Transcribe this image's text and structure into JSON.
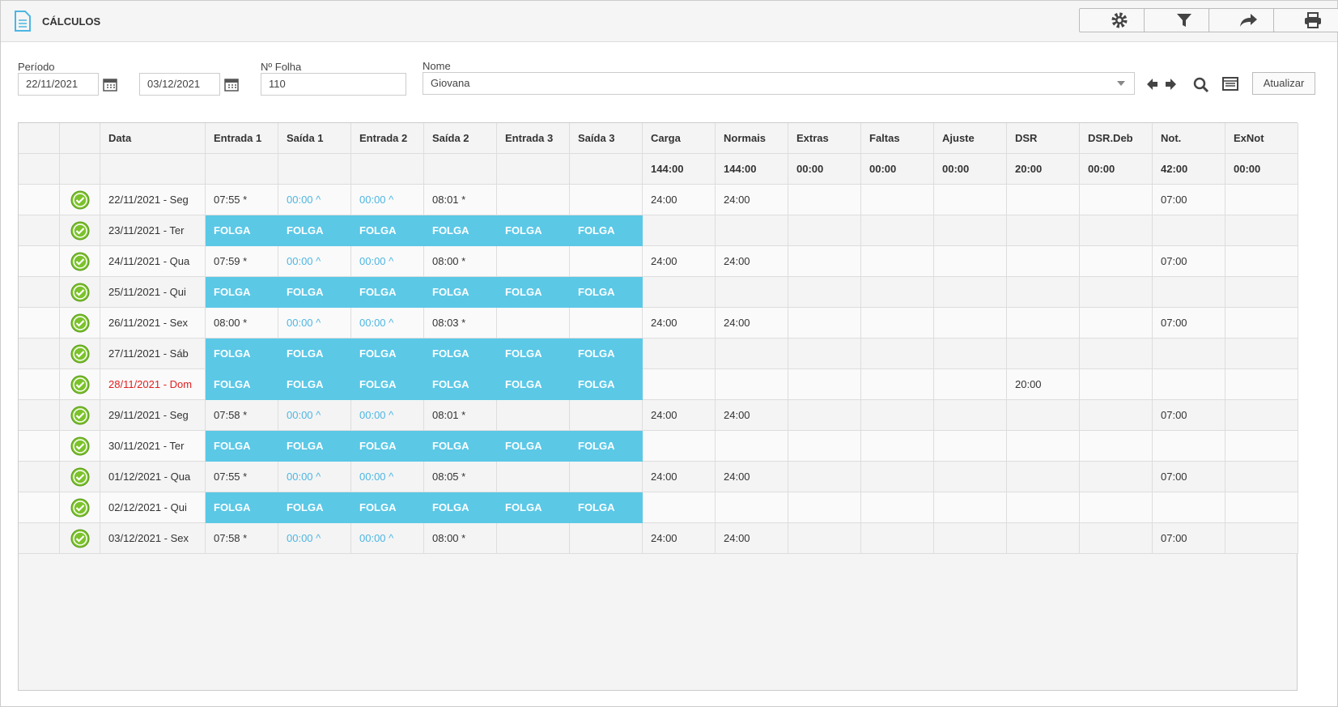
{
  "header": {
    "title": "CÁLCULOS"
  },
  "filters": {
    "periodo_label": "Período",
    "start": "22/11/2021",
    "end": "03/12/2021",
    "folha_label": "Nº Folha",
    "folha": "110",
    "nome_label": "Nome",
    "nome": "Giovana",
    "button": "Atualizar"
  },
  "table": {
    "columns": [
      "Data",
      "Entrada 1",
      "Saída 1",
      "Entrada 2",
      "Saída 2",
      "Entrada 3",
      "Saída 3",
      "Carga",
      "Normais",
      "Extras",
      "Faltas",
      "Ajuste",
      "DSR",
      "DSR.Deb",
      "Not.",
      "ExNot"
    ],
    "totals": [
      null,
      null,
      null,
      null,
      null,
      null,
      null,
      "144:00",
      "144:00",
      "00:00",
      "00:00",
      "00:00",
      "20:00",
      "00:00",
      "42:00",
      "00:00"
    ],
    "rows": [
      {
        "cells": [
          "22/11/2021 - Seg",
          "07:55 *",
          {
            "text": "00:00 ^",
            "color": "#4db6e2"
          },
          {
            "text": "00:00 ^",
            "color": "#4db6e2"
          },
          "08:01 *",
          null,
          null,
          "24:00",
          "24:00",
          null,
          null,
          null,
          null,
          null,
          "07:00",
          null
        ]
      },
      {
        "fill": "#5bc8e6",
        "cells": [
          "23/11/2021 - Ter",
          "FOLGA",
          "FOLGA",
          "FOLGA",
          "FOLGA",
          "FOLGA",
          "FOLGA",
          null,
          null,
          null,
          null,
          null,
          null,
          null,
          null,
          null
        ]
      },
      {
        "cells": [
          "24/11/2021 - Qua",
          "07:59 *",
          {
            "text": "00:00 ^",
            "color": "#4db6e2"
          },
          {
            "text": "00:00 ^",
            "color": "#4db6e2"
          },
          "08:00 *",
          null,
          null,
          "24:00",
          "24:00",
          null,
          null,
          null,
          null,
          null,
          "07:00",
          null
        ]
      },
      {
        "fill": "#5bc8e6",
        "cells": [
          "25/11/2021 - Qui",
          "FOLGA",
          "FOLGA",
          "FOLGA",
          "FOLGA",
          "FOLGA",
          "FOLGA",
          null,
          null,
          null,
          null,
          null,
          null,
          null,
          null,
          null
        ]
      },
      {
        "cells": [
          "26/11/2021 - Sex",
          "08:00 *",
          {
            "text": "00:00 ^",
            "color": "#4db6e2"
          },
          {
            "text": "00:00 ^",
            "color": "#4db6e2"
          },
          "08:03 *",
          null,
          null,
          "24:00",
          "24:00",
          null,
          null,
          null,
          null,
          null,
          "07:00",
          null
        ]
      },
      {
        "fill": "#5bc8e6",
        "cells": [
          "27/11/2021 - Sáb",
          "FOLGA",
          "FOLGA",
          "FOLGA",
          "FOLGA",
          "FOLGA",
          "FOLGA",
          null,
          null,
          null,
          null,
          null,
          null,
          null,
          null,
          null
        ]
      },
      {
        "fill": "#5bc8e6",
        "cells": [
          {
            "text": "28/11/2021 - Dom",
            "color": "#e02020"
          },
          "FOLGA",
          "FOLGA",
          "FOLGA",
          "FOLGA",
          "FOLGA",
          "FOLGA",
          null,
          null,
          null,
          null,
          null,
          "20:00",
          null,
          null,
          null
        ]
      },
      {
        "cells": [
          "29/11/2021 - Seg",
          "07:58 *",
          {
            "text": "00:00 ^",
            "color": "#4db6e2"
          },
          {
            "text": "00:00 ^",
            "color": "#4db6e2"
          },
          "08:01 *",
          null,
          null,
          "24:00",
          "24:00",
          null,
          null,
          null,
          null,
          null,
          "07:00",
          null
        ]
      },
      {
        "fill": "#5bc8e6",
        "cells": [
          "30/11/2021 - Ter",
          "FOLGA",
          "FOLGA",
          "FOLGA",
          "FOLGA",
          "FOLGA",
          "FOLGA",
          null,
          null,
          null,
          null,
          null,
          null,
          null,
          null,
          null
        ]
      },
      {
        "cells": [
          "01/12/2021 - Qua",
          "07:55 *",
          {
            "text": "00:00 ^",
            "color": "#4db6e2"
          },
          {
            "text": "00:00 ^",
            "color": "#4db6e2"
          },
          "08:05 *",
          null,
          null,
          "24:00",
          "24:00",
          null,
          null,
          null,
          null,
          null,
          "07:00",
          null
        ]
      },
      {
        "fill": "#5bc8e6",
        "cells": [
          "02/12/2021 - Qui",
          "FOLGA",
          "FOLGA",
          "FOLGA",
          "FOLGA",
          "FOLGA",
          "FOLGA",
          null,
          null,
          null,
          null,
          null,
          null,
          null,
          null,
          null
        ]
      },
      {
        "cells": [
          "03/12/2021 - Sex",
          "07:58 *",
          {
            "text": "00:00 ^",
            "color": "#4db6e2"
          },
          {
            "text": "00:00 ^",
            "color": "#4db6e2"
          },
          "08:00 *",
          null,
          null,
          "24:00",
          "24:00",
          null,
          null,
          null,
          null,
          null,
          "07:00",
          null
        ]
      }
    ]
  }
}
